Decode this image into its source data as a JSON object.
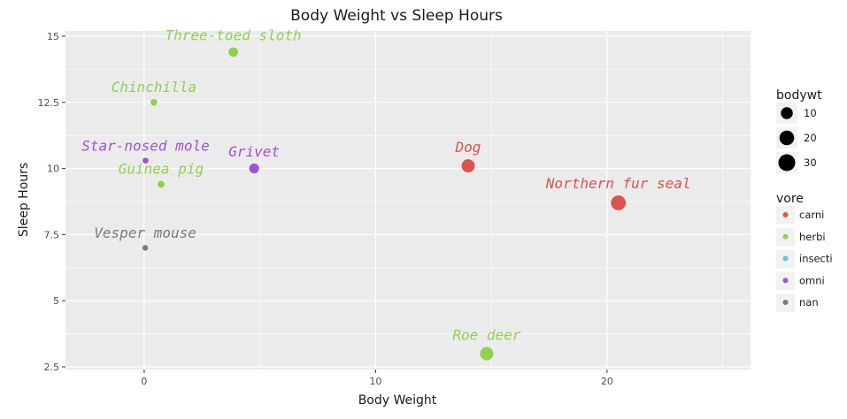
{
  "chart_data": {
    "type": "scatter",
    "title": "Body Weight vs Sleep Hours",
    "xlabel": "Body Weight",
    "ylabel": "Sleep Hours",
    "xlim": [
      -3.4,
      26.2
    ],
    "ylim": [
      2.4,
      15.2
    ],
    "x_ticks": [
      0,
      10,
      20
    ],
    "x_tick_labels": [
      "0",
      "10",
      "20"
    ],
    "y_ticks": [
      2.5,
      5,
      7.5,
      10,
      12.5,
      15
    ],
    "y_tick_labels": [
      "2.5",
      "5",
      "7.5",
      "10",
      "12.5",
      "15"
    ],
    "grid": true,
    "points": [
      {
        "name": "Three-toed sloth",
        "bodywt": 3.85,
        "sleep": 14.4,
        "vore": "herbi"
      },
      {
        "name": "Chinchilla",
        "bodywt": 0.42,
        "sleep": 12.5,
        "vore": "herbi"
      },
      {
        "name": "Star-nosed mole",
        "bodywt": 0.06,
        "sleep": 10.3,
        "vore": "omni"
      },
      {
        "name": "Guinea pig",
        "bodywt": 0.728,
        "sleep": 9.4,
        "vore": "herbi"
      },
      {
        "name": "Grivet",
        "bodywt": 4.75,
        "sleep": 10.0,
        "vore": "omni"
      },
      {
        "name": "Dog",
        "bodywt": 14.0,
        "sleep": 10.1,
        "vore": "carni"
      },
      {
        "name": "Northern fur seal",
        "bodywt": 20.49,
        "sleep": 8.7,
        "vore": "carni"
      },
      {
        "name": "Vesper mouse",
        "bodywt": 0.045,
        "sleep": 7.0,
        "vore": "nan"
      },
      {
        "name": "Roe deer",
        "bodywt": 14.8,
        "sleep": 3.0,
        "vore": "herbi"
      }
    ],
    "legend": {
      "placement": "right",
      "size_title": "bodywt",
      "size_values": [
        10,
        20,
        30
      ],
      "color_title": "vore",
      "color_items": [
        {
          "label": "carni",
          "color": "#d9534f"
        },
        {
          "label": "herbi",
          "color": "#8fd14f"
        },
        {
          "label": "insecti",
          "color": "#5bc8de"
        },
        {
          "label": "omni",
          "color": "#a052d6"
        },
        {
          "label": "nan",
          "color": "#7a7a7a"
        }
      ]
    }
  },
  "colors": {
    "panel_bg": "#ebebeb",
    "grid": "#ffffff",
    "carni": "#d9534f",
    "herbi": "#8fd14f",
    "insecti": "#5bc8de",
    "omni": "#a052d6",
    "nan": "#7a7a7a"
  }
}
